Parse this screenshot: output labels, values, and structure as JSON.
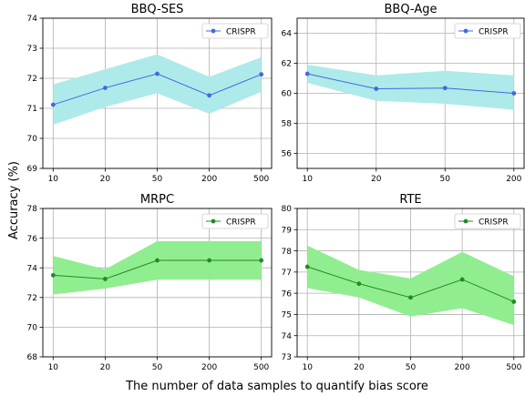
{
  "figure": {
    "ylabel": "Accuracy (%)",
    "xlabel": "The number of data samples to quantify bias score"
  },
  "chart_data": [
    {
      "type": "line",
      "title": "BBQ-SES",
      "categories": [
        "10",
        "20",
        "50",
        "200",
        "500"
      ],
      "ylim": [
        69,
        74
      ],
      "yticks": [
        69,
        70,
        71,
        72,
        73,
        74
      ],
      "grid": true,
      "legend_position": "top-right",
      "line_color": "#4169e1",
      "band_color": "#aeeaea",
      "series": [
        {
          "name": "CRISPR",
          "values": [
            71.12,
            71.68,
            72.15,
            71.43,
            72.13
          ],
          "upper": [
            71.8,
            72.3,
            72.8,
            72.05,
            72.7
          ],
          "lower": [
            70.45,
            71.05,
            71.5,
            70.82,
            71.55
          ]
        }
      ]
    },
    {
      "type": "line",
      "title": "BBQ-Age",
      "categories": [
        "10",
        "20",
        "50",
        "200"
      ],
      "ylim": [
        55,
        65
      ],
      "yticks": [
        56,
        58,
        60,
        62,
        64
      ],
      "grid": true,
      "legend_position": "top-right",
      "line_color": "#4169e1",
      "band_color": "#aeeaea",
      "series": [
        {
          "name": "CRISPR",
          "values": [
            61.3,
            60.3,
            60.35,
            60.0
          ],
          "upper": [
            61.9,
            61.2,
            61.5,
            61.2
          ],
          "lower": [
            60.7,
            59.5,
            59.3,
            58.9
          ]
        }
      ]
    },
    {
      "type": "line",
      "title": "MRPC",
      "categories": [
        "10",
        "20",
        "50",
        "200",
        "500"
      ],
      "ylim": [
        68,
        78
      ],
      "yticks": [
        68,
        70,
        72,
        74,
        76,
        78
      ],
      "grid": true,
      "legend_position": "top-right",
      "line_color": "#228b22",
      "band_color": "#90ee90",
      "series": [
        {
          "name": "CRISPR",
          "values": [
            73.5,
            73.25,
            74.5,
            74.5,
            74.5
          ],
          "upper": [
            74.8,
            73.9,
            75.8,
            75.8,
            75.8
          ],
          "lower": [
            72.2,
            72.6,
            73.2,
            73.2,
            73.2
          ]
        }
      ]
    },
    {
      "type": "line",
      "title": "RTE",
      "categories": [
        "10",
        "20",
        "50",
        "200",
        "500"
      ],
      "ylim": [
        73,
        80
      ],
      "yticks": [
        73,
        74,
        75,
        76,
        77,
        78,
        79,
        80
      ],
      "grid": true,
      "legend_position": "top-right",
      "line_color": "#228b22",
      "band_color": "#90ee90",
      "series": [
        {
          "name": "CRISPR",
          "values": [
            77.25,
            76.45,
            75.8,
            76.65,
            75.6
          ],
          "upper": [
            78.25,
            77.1,
            76.7,
            77.95,
            76.8
          ],
          "lower": [
            76.25,
            75.8,
            74.9,
            75.3,
            74.5
          ]
        }
      ]
    }
  ]
}
